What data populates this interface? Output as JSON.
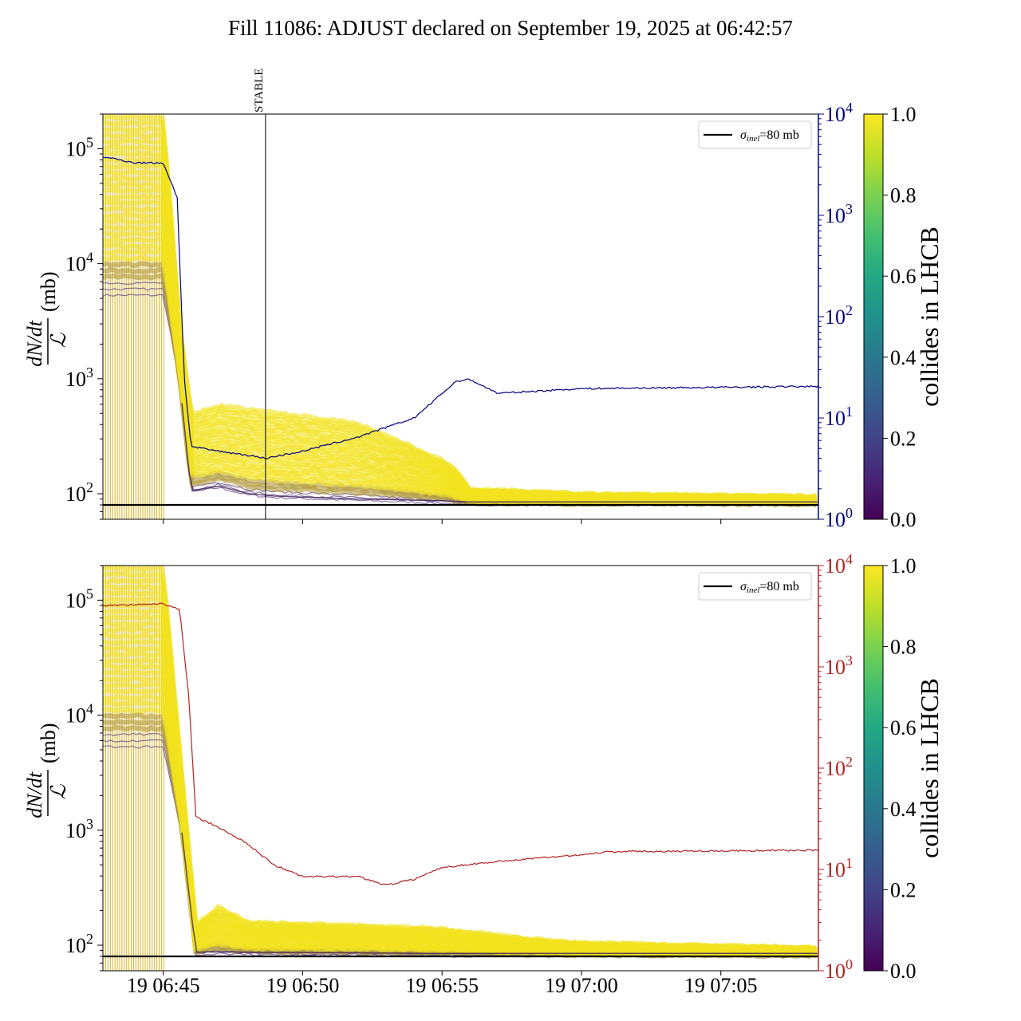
{
  "figure": {
    "title": "Fill 11086: ADJUST declared on September 19, 2025 at 06:42:57"
  },
  "chart_data": [
    {
      "type": "line",
      "panel": "top",
      "ylabel_numerator": "dN/dt",
      "ylabel_denominator": "ℒ",
      "ylabel_unit": "(mb)",
      "y_scale": "log",
      "ylim": [
        60,
        200000
      ],
      "y_ticks": [
        "10^2",
        "10^3",
        "10^4",
        "10^5"
      ],
      "y2_scale": "log",
      "y2_lim": [
        1,
        10000
      ],
      "y2_ticks": [
        "10^0",
        "10^1",
        "10^2",
        "10^3",
        "10^4"
      ],
      "y2_color": "#00007f",
      "x_range": [
        "06:42:50",
        "07:08:30"
      ],
      "x_tick_labels_shown": false,
      "event_marker": {
        "time": "06:48:40",
        "label": "STABLE"
      },
      "reference_line": {
        "value": 80,
        "legend": "σinel=80 mb",
        "color": "#000000"
      },
      "legend_position": "upper right",
      "colorbar": {
        "label": "collides in LHCB",
        "range": [
          0.0,
          1.0
        ],
        "ticks": [
          "0.0",
          "0.2",
          "0.4",
          "0.6",
          "0.8",
          "1.0"
        ]
      },
      "secondary_series": {
        "color": "#00007f",
        "t": [
          "06:42:50",
          "06:44:00",
          "06:45:00",
          "06:45:30",
          "06:45:45",
          "06:46:00",
          "06:47:00",
          "06:48:00",
          "06:48:40",
          "06:50:00",
          "06:52:00",
          "06:54:00",
          "06:55:30",
          "06:56:00",
          "06:57:00",
          "07:00:00",
          "07:08:30"
        ],
        "v": [
          3800,
          3300,
          3300,
          1500,
          25,
          5.2,
          4.7,
          4.3,
          4.0,
          4.7,
          6.5,
          10,
          23,
          24,
          17.5,
          19.5,
          20.5
        ]
      },
      "band_envelope": {
        "t": [
          "06:42:50",
          "06:45:00",
          "06:45:35",
          "06:46:00",
          "06:47:00",
          "06:48:00",
          "06:49:00",
          "06:52:00",
          "06:55:00",
          "06:55:30",
          "06:56:00",
          "07:00:00",
          "07:08:30"
        ],
        "upper": [
          200000,
          200000,
          3000,
          500,
          600,
          560,
          520,
          420,
          200,
          160,
          110,
          100,
          95
        ],
        "lower": [
          5000,
          5000,
          900,
          100,
          110,
          95,
          90,
          85,
          82,
          81,
          80,
          80,
          80
        ]
      }
    },
    {
      "type": "line",
      "panel": "bottom",
      "ylabel_numerator": "dN/dt",
      "ylabel_denominator": "ℒ",
      "ylabel_unit": "(mb)",
      "y_scale": "log",
      "ylim": [
        60,
        200000
      ],
      "y_ticks": [
        "10^2",
        "10^3",
        "10^4",
        "10^5"
      ],
      "y2_scale": "log",
      "y2_lim": [
        1,
        10000
      ],
      "y2_ticks": [
        "10^0",
        "10^1",
        "10^2",
        "10^3",
        "10^4"
      ],
      "y2_color": "#b22222",
      "x_range": [
        "06:42:50",
        "07:08:30"
      ],
      "x_ticks": [
        "19 06:45",
        "19 06:50",
        "19 06:55",
        "19 07:00",
        "19 07:05"
      ],
      "x_tick_times": [
        "06:45:00",
        "06:50:00",
        "06:55:00",
        "07:00:00",
        "07:05:00"
      ],
      "reference_line": {
        "value": 80,
        "legend": "σinel=80 mb",
        "color": "#000000"
      },
      "legend_position": "upper right",
      "colorbar": {
        "label": "collides in LHCB",
        "range": [
          0.0,
          1.0
        ],
        "ticks": [
          "0.0",
          "0.2",
          "0.4",
          "0.6",
          "0.8",
          "1.0"
        ]
      },
      "secondary_series": {
        "color": "#b22222",
        "t": [
          "06:42:50",
          "06:45:00",
          "06:45:35",
          "06:45:55",
          "06:46:10",
          "06:47:00",
          "06:48:00",
          "06:49:00",
          "06:50:00",
          "06:52:00",
          "06:53:00",
          "06:54:00",
          "06:55:00",
          "06:57:00",
          "07:00:00",
          "07:01:00",
          "07:08:30"
        ],
        "v": [
          4000,
          4200,
          3700,
          500,
          33,
          26,
          18,
          11,
          8.5,
          8.5,
          7,
          8,
          10.5,
          12,
          14,
          15,
          15.5
        ]
      },
      "band_envelope": {
        "t": [
          "06:42:50",
          "06:45:00",
          "06:45:40",
          "06:46:10",
          "06:47:00",
          "06:48:00",
          "06:52:00",
          "06:55:00",
          "06:58:00",
          "07:00:00",
          "07:08:30"
        ],
        "upper": [
          200000,
          200000,
          3000,
          150,
          220,
          160,
          150,
          140,
          115,
          105,
          95
        ],
        "lower": [
          5000,
          5000,
          900,
          82,
          83,
          82,
          81,
          80,
          80,
          80,
          80
        ]
      }
    }
  ]
}
